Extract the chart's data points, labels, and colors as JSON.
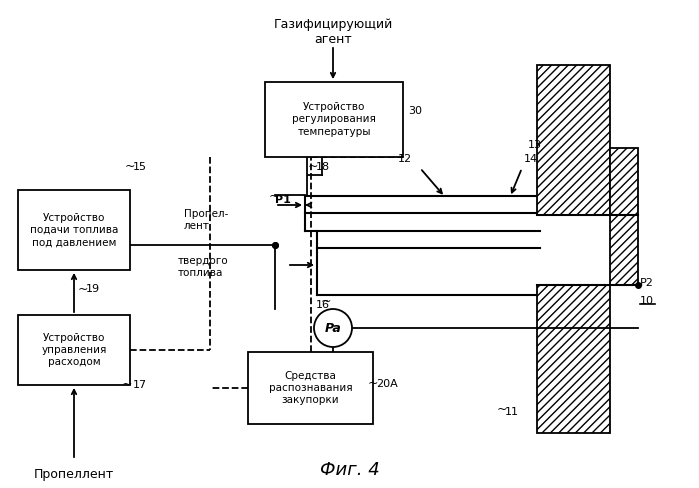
{
  "title": "Фиг. 4",
  "top_label": "Газифицирующий\nагент",
  "bottom_label": "Пропеллент",
  "box_temp": "Устройство\nрегулирования\nтемпературы",
  "box_fuel": "Устройство\nподачи топлива\nпод давлением",
  "box_flow": "Устройство\nуправления\nрасходом",
  "box_plug": "Средства\nраспознавания\nзакупорки",
  "label_30": "30",
  "label_15": "15",
  "label_19": "19",
  "label_17": "17",
  "label_18": "18",
  "label_16": "16",
  "label_20A": "20A",
  "label_P1": "P1",
  "label_Pa": "Pa",
  "label_P2": "P2",
  "label_10": "10",
  "label_11": "11",
  "label_12": "12",
  "label_13": "13",
  "label_14": "14",
  "propellant_label": "Пропел-\nлент",
  "solid_fuel_label": "твердого\nтоплива",
  "bg_color": "#ffffff",
  "line_color": "#000000"
}
